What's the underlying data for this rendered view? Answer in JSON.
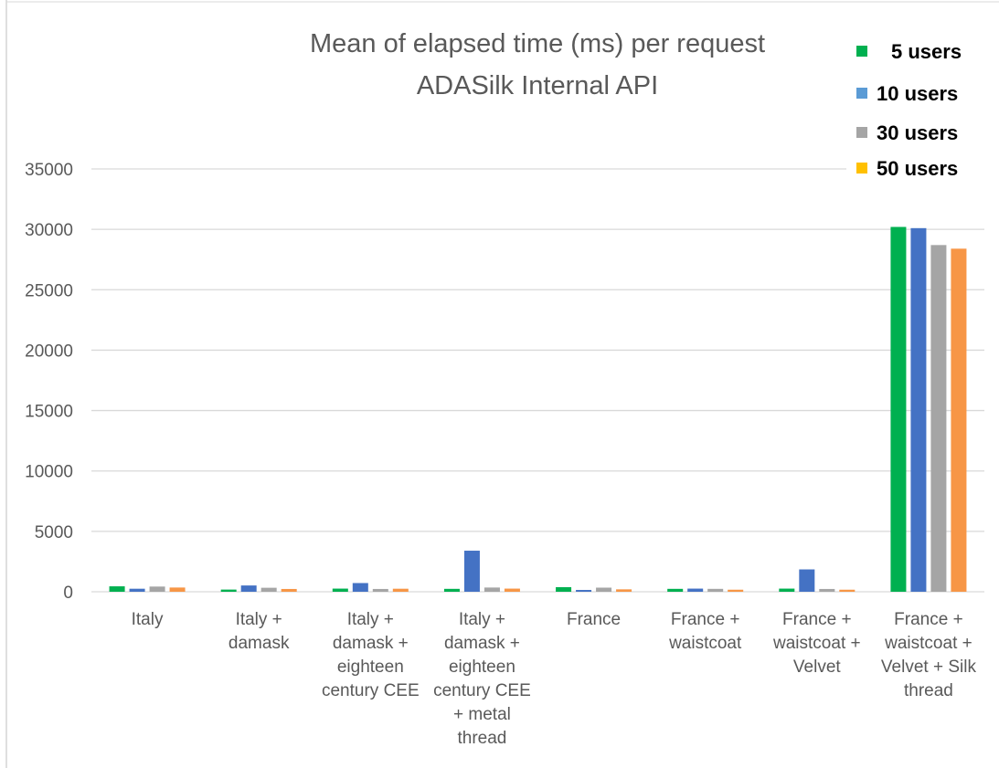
{
  "chart_data": {
    "type": "bar",
    "title": [
      "Mean of elapsed time (ms) per request",
      "ADASilk Internal API"
    ],
    "categories": [
      [
        "Italy"
      ],
      [
        "Italy +",
        "damask"
      ],
      [
        "Italy +",
        "damask +",
        "eighteen",
        "century CEE"
      ],
      [
        "Italy +",
        "damask +",
        "eighteen",
        "century CEE",
        "+ metal",
        "thread"
      ],
      [
        "France"
      ],
      [
        "France +",
        "waistcoat"
      ],
      [
        "France +",
        "waistcoat +",
        "Velvet"
      ],
      [
        "France +",
        "waistcoat +",
        "Velvet + Silk",
        "thread"
      ]
    ],
    "series": [
      {
        "name": "5 users",
        "color": "#00b050",
        "values": [
          450,
          180,
          260,
          240,
          380,
          240,
          260,
          30200
        ]
      },
      {
        "name": "10 users",
        "color": "#4472c4",
        "values": [
          250,
          520,
          720,
          3400,
          150,
          260,
          1850,
          30100
        ]
      },
      {
        "name": "30 users",
        "color": "#a5a5a5",
        "values": [
          430,
          330,
          230,
          350,
          340,
          240,
          230,
          28700
        ]
      },
      {
        "name": "50 users",
        "color": "#f79646",
        "values": [
          350,
          230,
          250,
          260,
          200,
          170,
          170,
          28400
        ]
      }
    ],
    "legend_entries": [
      {
        "label": "5 users",
        "color": "#00b050"
      },
      {
        "label": "10 users",
        "color": "#5b9bd5"
      },
      {
        "label": "30 users",
        "color": "#a5a5a5"
      },
      {
        "label": "50 users",
        "color": "#ffc000"
      }
    ],
    "ylim": [
      0,
      35000
    ],
    "yticks": [
      0,
      5000,
      10000,
      15000,
      20000,
      25000,
      30000,
      35000
    ],
    "grid": true,
    "legend_position": "top-right",
    "xlabel": "",
    "ylabel": ""
  }
}
